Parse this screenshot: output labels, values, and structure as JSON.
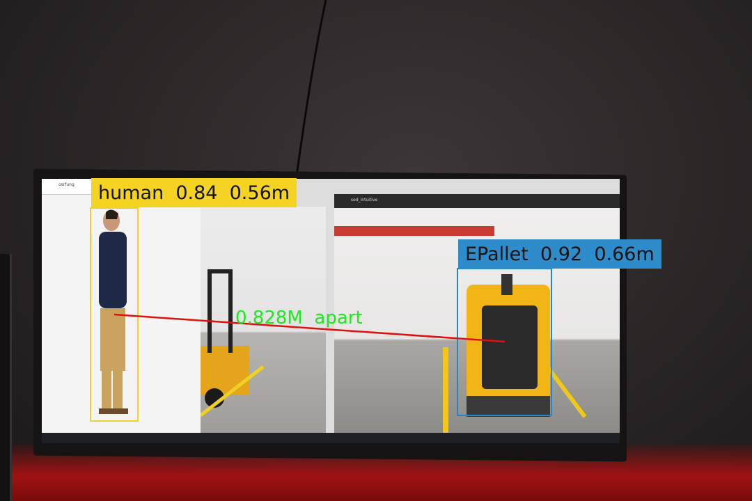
{
  "detections": [
    {
      "class": "human",
      "confidence": "0.84",
      "distance": "0.56m",
      "label": "human  0.84  0.56m",
      "color": "#f5d323"
    },
    {
      "class": "EPallet",
      "confidence": "0.92",
      "distance": "0.66m",
      "label": "EPallet  0.92  0.66m",
      "color": "#2e8ccb"
    }
  ],
  "separation": {
    "text": "0.828M  apart",
    "line_color": "#e01010",
    "text_color": "#1ee81e"
  },
  "screen": {
    "window1_title": "osrfung",
    "window2_title": "sed_intuitive"
  }
}
